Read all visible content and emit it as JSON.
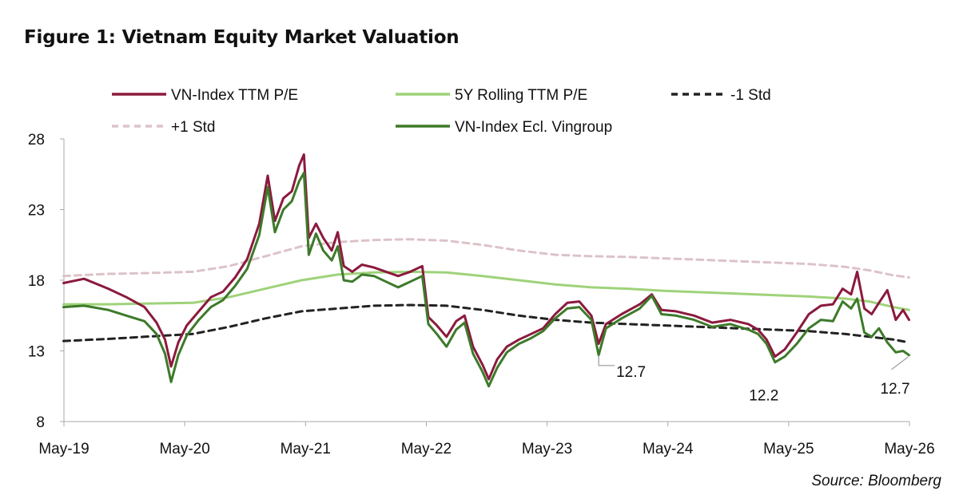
{
  "title": "Figure 1: Vietnam Equity Market Valuation",
  "source": "Source: Bloomberg",
  "colors": {
    "vn_index": "#8b1a3d",
    "rolling": "#9fd27a",
    "minus_std": "#222222",
    "plus_std": "#dcc3c8",
    "ex_vingroup": "#3d7a2a",
    "axis": "#aaaaaa"
  },
  "chart_data": {
    "type": "line",
    "title": "Figure 1: Vietnam Equity Market Valuation",
    "xlabel": "",
    "ylabel": "",
    "ylim": [
      8,
      28
    ],
    "yticks": [
      8,
      13,
      18,
      23,
      28
    ],
    "xlim": [
      2019.333,
      2026.333
    ],
    "xticks": [
      {
        "x": 2019.333,
        "label": "May-19"
      },
      {
        "x": 2020.333,
        "label": "May-20"
      },
      {
        "x": 2021.333,
        "label": "May-21"
      },
      {
        "x": 2022.333,
        "label": "May-22"
      },
      {
        "x": 2023.333,
        "label": "May-23"
      },
      {
        "x": 2024.333,
        "label": "May-24"
      },
      {
        "x": 2025.333,
        "label": "May-25"
      },
      {
        "x": 2026.333,
        "label": "May-26"
      }
    ],
    "legend_position": "top",
    "grid": false,
    "series": [
      {
        "name": "VN-Index TTM P/E",
        "style": "solid",
        "color": "#8b1a3d",
        "points": [
          [
            2019.33,
            17.8
          ],
          [
            2019.5,
            18.1
          ],
          [
            2019.7,
            17.4
          ],
          [
            2019.85,
            16.8
          ],
          [
            2020.0,
            16.1
          ],
          [
            2020.1,
            15.0
          ],
          [
            2020.17,
            13.8
          ],
          [
            2020.22,
            11.9
          ],
          [
            2020.28,
            13.6
          ],
          [
            2020.35,
            14.8
          ],
          [
            2020.45,
            15.8
          ],
          [
            2020.55,
            16.8
          ],
          [
            2020.65,
            17.2
          ],
          [
            2020.75,
            18.2
          ],
          [
            2020.85,
            19.5
          ],
          [
            2020.95,
            22.0
          ],
          [
            2021.02,
            25.4
          ],
          [
            2021.08,
            22.2
          ],
          [
            2021.15,
            23.8
          ],
          [
            2021.22,
            24.3
          ],
          [
            2021.28,
            26.1
          ],
          [
            2021.32,
            26.9
          ],
          [
            2021.36,
            21.0
          ],
          [
            2021.42,
            22.0
          ],
          [
            2021.48,
            21.0
          ],
          [
            2021.55,
            20.1
          ],
          [
            2021.6,
            21.4
          ],
          [
            2021.65,
            19.0
          ],
          [
            2021.72,
            18.6
          ],
          [
            2021.8,
            19.1
          ],
          [
            2021.9,
            18.9
          ],
          [
            2022.0,
            18.6
          ],
          [
            2022.1,
            18.3
          ],
          [
            2022.2,
            18.6
          ],
          [
            2022.3,
            19.0
          ],
          [
            2022.35,
            15.4
          ],
          [
            2022.42,
            14.8
          ],
          [
            2022.5,
            14.0
          ],
          [
            2022.58,
            15.1
          ],
          [
            2022.65,
            15.5
          ],
          [
            2022.72,
            13.3
          ],
          [
            2022.8,
            12.0
          ],
          [
            2022.85,
            11.0
          ],
          [
            2022.92,
            12.4
          ],
          [
            2023.0,
            13.3
          ],
          [
            2023.1,
            13.8
          ],
          [
            2023.2,
            14.2
          ],
          [
            2023.3,
            14.6
          ],
          [
            2023.4,
            15.6
          ],
          [
            2023.5,
            16.4
          ],
          [
            2023.6,
            16.5
          ],
          [
            2023.7,
            15.5
          ],
          [
            2023.76,
            13.5
          ],
          [
            2023.82,
            14.9
          ],
          [
            2023.95,
            15.6
          ],
          [
            2024.1,
            16.3
          ],
          [
            2024.2,
            17.0
          ],
          [
            2024.28,
            15.9
          ],
          [
            2024.4,
            15.8
          ],
          [
            2024.55,
            15.5
          ],
          [
            2024.7,
            15.0
          ],
          [
            2024.85,
            15.2
          ],
          [
            2025.0,
            14.9
          ],
          [
            2025.08,
            14.5
          ],
          [
            2025.15,
            13.8
          ],
          [
            2025.22,
            12.6
          ],
          [
            2025.3,
            13.1
          ],
          [
            2025.4,
            14.3
          ],
          [
            2025.5,
            15.6
          ],
          [
            2025.6,
            16.2
          ],
          [
            2025.7,
            16.3
          ],
          [
            2025.78,
            17.4
          ],
          [
            2025.85,
            17.0
          ],
          [
            2025.9,
            18.6
          ],
          [
            2025.96,
            16.0
          ],
          [
            2026.02,
            15.6
          ],
          [
            2026.08,
            16.4
          ],
          [
            2026.15,
            17.3
          ],
          [
            2026.22,
            15.2
          ],
          [
            2026.28,
            15.9
          ],
          [
            2026.33,
            15.2
          ]
        ]
      },
      {
        "name": "5Y  Rolling TTM P/E",
        "style": "solid",
        "color": "#9fd27a",
        "points": [
          [
            2019.33,
            16.3
          ],
          [
            2019.7,
            16.3
          ],
          [
            2020.0,
            16.35
          ],
          [
            2020.4,
            16.4
          ],
          [
            2020.7,
            16.8
          ],
          [
            2021.0,
            17.4
          ],
          [
            2021.3,
            18.0
          ],
          [
            2021.6,
            18.4
          ],
          [
            2021.9,
            18.55
          ],
          [
            2022.2,
            18.6
          ],
          [
            2022.5,
            18.55
          ],
          [
            2022.8,
            18.3
          ],
          [
            2023.1,
            18.0
          ],
          [
            2023.4,
            17.7
          ],
          [
            2023.7,
            17.5
          ],
          [
            2024.0,
            17.4
          ],
          [
            2024.3,
            17.25
          ],
          [
            2024.6,
            17.15
          ],
          [
            2024.9,
            17.05
          ],
          [
            2025.2,
            16.95
          ],
          [
            2025.5,
            16.85
          ],
          [
            2025.8,
            16.7
          ],
          [
            2026.0,
            16.5
          ],
          [
            2026.2,
            16.1
          ],
          [
            2026.33,
            15.9
          ]
        ]
      },
      {
        "name": "-1 Std",
        "style": "dashed",
        "color": "#222222",
        "points": [
          [
            2019.33,
            13.7
          ],
          [
            2019.7,
            13.85
          ],
          [
            2020.0,
            14.0
          ],
          [
            2020.4,
            14.2
          ],
          [
            2020.7,
            14.7
          ],
          [
            2021.0,
            15.3
          ],
          [
            2021.3,
            15.8
          ],
          [
            2021.6,
            16.0
          ],
          [
            2021.9,
            16.2
          ],
          [
            2022.2,
            16.25
          ],
          [
            2022.5,
            16.2
          ],
          [
            2022.8,
            15.9
          ],
          [
            2023.1,
            15.5
          ],
          [
            2023.4,
            15.2
          ],
          [
            2023.7,
            15.0
          ],
          [
            2024.0,
            14.9
          ],
          [
            2024.3,
            14.8
          ],
          [
            2024.6,
            14.7
          ],
          [
            2024.9,
            14.6
          ],
          [
            2025.2,
            14.5
          ],
          [
            2025.5,
            14.4
          ],
          [
            2025.8,
            14.2
          ],
          [
            2026.0,
            14.0
          ],
          [
            2026.2,
            13.8
          ],
          [
            2026.33,
            13.6
          ]
        ]
      },
      {
        "name": "+1 Std",
        "style": "dashed",
        "color": "#dcc3c8",
        "points": [
          [
            2019.33,
            18.3
          ],
          [
            2019.7,
            18.45
          ],
          [
            2020.0,
            18.5
          ],
          [
            2020.4,
            18.6
          ],
          [
            2020.7,
            19.0
          ],
          [
            2021.0,
            19.7
          ],
          [
            2021.3,
            20.4
          ],
          [
            2021.6,
            20.7
          ],
          [
            2021.9,
            20.85
          ],
          [
            2022.2,
            20.9
          ],
          [
            2022.5,
            20.8
          ],
          [
            2022.8,
            20.5
          ],
          [
            2023.1,
            20.1
          ],
          [
            2023.4,
            19.8
          ],
          [
            2023.7,
            19.7
          ],
          [
            2024.0,
            19.65
          ],
          [
            2024.3,
            19.55
          ],
          [
            2024.6,
            19.45
          ],
          [
            2024.9,
            19.35
          ],
          [
            2025.2,
            19.25
          ],
          [
            2025.5,
            19.15
          ],
          [
            2025.8,
            18.95
          ],
          [
            2026.0,
            18.7
          ],
          [
            2026.2,
            18.35
          ],
          [
            2026.33,
            18.2
          ]
        ]
      },
      {
        "name": "VN-Index Ecl. Vingroup",
        "style": "solid",
        "color": "#3d7a2a",
        "points": [
          [
            2019.33,
            16.1
          ],
          [
            2019.5,
            16.2
          ],
          [
            2019.7,
            15.9
          ],
          [
            2019.85,
            15.5
          ],
          [
            2020.0,
            15.1
          ],
          [
            2020.1,
            14.2
          ],
          [
            2020.17,
            12.8
          ],
          [
            2020.22,
            10.8
          ],
          [
            2020.28,
            12.7
          ],
          [
            2020.35,
            14.1
          ],
          [
            2020.45,
            15.2
          ],
          [
            2020.55,
            16.1
          ],
          [
            2020.65,
            16.6
          ],
          [
            2020.75,
            17.6
          ],
          [
            2020.85,
            18.8
          ],
          [
            2020.95,
            21.2
          ],
          [
            2021.02,
            24.6
          ],
          [
            2021.08,
            21.4
          ],
          [
            2021.15,
            23.0
          ],
          [
            2021.22,
            23.6
          ],
          [
            2021.28,
            25.0
          ],
          [
            2021.32,
            25.6
          ],
          [
            2021.36,
            19.8
          ],
          [
            2021.42,
            21.3
          ],
          [
            2021.48,
            20.1
          ],
          [
            2021.55,
            19.4
          ],
          [
            2021.6,
            20.4
          ],
          [
            2021.65,
            18.0
          ],
          [
            2021.72,
            17.9
          ],
          [
            2021.8,
            18.4
          ],
          [
            2021.9,
            18.3
          ],
          [
            2022.0,
            17.9
          ],
          [
            2022.1,
            17.5
          ],
          [
            2022.2,
            17.9
          ],
          [
            2022.3,
            18.3
          ],
          [
            2022.35,
            14.9
          ],
          [
            2022.42,
            14.2
          ],
          [
            2022.5,
            13.3
          ],
          [
            2022.58,
            14.5
          ],
          [
            2022.65,
            15.0
          ],
          [
            2022.72,
            12.8
          ],
          [
            2022.8,
            11.5
          ],
          [
            2022.85,
            10.5
          ],
          [
            2022.92,
            11.8
          ],
          [
            2023.0,
            12.9
          ],
          [
            2023.1,
            13.5
          ],
          [
            2023.2,
            13.9
          ],
          [
            2023.3,
            14.4
          ],
          [
            2023.4,
            15.3
          ],
          [
            2023.5,
            16.0
          ],
          [
            2023.6,
            16.1
          ],
          [
            2023.7,
            15.2
          ],
          [
            2023.76,
            12.7
          ],
          [
            2023.82,
            14.6
          ],
          [
            2023.95,
            15.3
          ],
          [
            2024.1,
            16.0
          ],
          [
            2024.2,
            16.9
          ],
          [
            2024.28,
            15.6
          ],
          [
            2024.4,
            15.5
          ],
          [
            2024.55,
            15.2
          ],
          [
            2024.7,
            14.7
          ],
          [
            2024.85,
            14.9
          ],
          [
            2025.0,
            14.5
          ],
          [
            2025.08,
            14.2
          ],
          [
            2025.15,
            13.5
          ],
          [
            2025.22,
            12.2
          ],
          [
            2025.3,
            12.6
          ],
          [
            2025.4,
            13.5
          ],
          [
            2025.5,
            14.6
          ],
          [
            2025.6,
            15.2
          ],
          [
            2025.7,
            15.1
          ],
          [
            2025.78,
            16.5
          ],
          [
            2025.85,
            16.0
          ],
          [
            2025.9,
            16.7
          ],
          [
            2025.96,
            14.3
          ],
          [
            2026.02,
            14.0
          ],
          [
            2026.08,
            14.6
          ],
          [
            2026.15,
            13.6
          ],
          [
            2026.22,
            12.9
          ],
          [
            2026.28,
            13.0
          ],
          [
            2026.33,
            12.7
          ]
        ]
      }
    ],
    "annotations": [
      {
        "text": "12.7",
        "x": 2023.76,
        "y": 12.7
      },
      {
        "text": "12.2",
        "x": 2025.22,
        "y": 12.2
      },
      {
        "text": "12.7",
        "x": 2026.33,
        "y": 12.7
      }
    ]
  }
}
